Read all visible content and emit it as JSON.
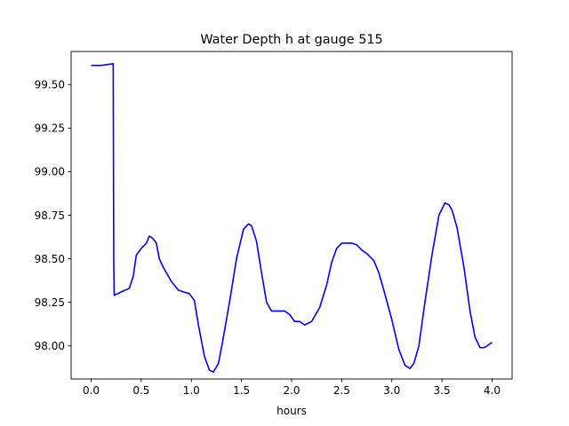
{
  "chart_data": {
    "type": "line",
    "title": "Water Depth h at gauge 515",
    "xlabel": "hours",
    "ylabel": "",
    "xlim": [
      -0.2,
      4.2
    ],
    "ylim": [
      97.81,
      99.69
    ],
    "xticks": [
      0.0,
      0.5,
      1.0,
      1.5,
      2.0,
      2.5,
      3.0,
      3.5,
      4.0
    ],
    "xtick_labels": [
      "0.0",
      "0.5",
      "1.0",
      "1.5",
      "2.0",
      "2.5",
      "3.0",
      "3.5",
      "4.0"
    ],
    "yticks": [
      98.0,
      98.25,
      98.5,
      98.75,
      99.0,
      99.25,
      99.5
    ],
    "ytick_labels": [
      "98.00",
      "98.25",
      "98.50",
      "98.75",
      "99.00",
      "99.25",
      "99.50"
    ],
    "grid": false,
    "series": [
      {
        "color": "#0000ff",
        "x": [
          0.0,
          0.1,
          0.22,
          0.225,
          0.23,
          0.3,
          0.38,
          0.42,
          0.45,
          0.5,
          0.55,
          0.58,
          0.61,
          0.65,
          0.68,
          0.72,
          0.8,
          0.87,
          0.92,
          0.98,
          1.03,
          1.07,
          1.13,
          1.18,
          1.22,
          1.27,
          1.31,
          1.38,
          1.45,
          1.52,
          1.57,
          1.6,
          1.65,
          1.7,
          1.75,
          1.8,
          1.84,
          1.88,
          1.93,
          1.98,
          2.03,
          2.08,
          2.13,
          2.2,
          2.28,
          2.35,
          2.4,
          2.45,
          2.5,
          2.55,
          2.6,
          2.65,
          2.7,
          2.75,
          2.82,
          2.87,
          2.92,
          3.0,
          3.07,
          3.13,
          3.18,
          3.22,
          3.27,
          3.33,
          3.4,
          3.47,
          3.53,
          3.57,
          3.6,
          3.65,
          3.72,
          3.78,
          3.83,
          3.88,
          3.92,
          3.95,
          4.0
        ],
        "y": [
          99.61,
          99.61,
          99.62,
          98.5,
          98.29,
          98.31,
          98.33,
          98.4,
          98.52,
          98.56,
          98.59,
          98.63,
          98.62,
          98.59,
          98.5,
          98.45,
          98.37,
          98.32,
          98.31,
          98.3,
          98.26,
          98.12,
          97.94,
          97.86,
          97.85,
          97.9,
          98.02,
          98.25,
          98.5,
          98.67,
          98.7,
          98.69,
          98.6,
          98.42,
          98.25,
          98.2,
          98.2,
          98.2,
          98.2,
          98.18,
          98.14,
          98.14,
          98.12,
          98.14,
          98.22,
          98.35,
          98.48,
          98.56,
          98.59,
          98.59,
          98.59,
          98.58,
          98.55,
          98.53,
          98.49,
          98.42,
          98.32,
          98.15,
          97.98,
          97.89,
          97.87,
          97.9,
          98.0,
          98.25,
          98.52,
          98.75,
          98.82,
          98.81,
          98.78,
          98.68,
          98.45,
          98.2,
          98.05,
          97.99,
          97.99,
          98.0,
          98.02
        ]
      }
    ]
  }
}
